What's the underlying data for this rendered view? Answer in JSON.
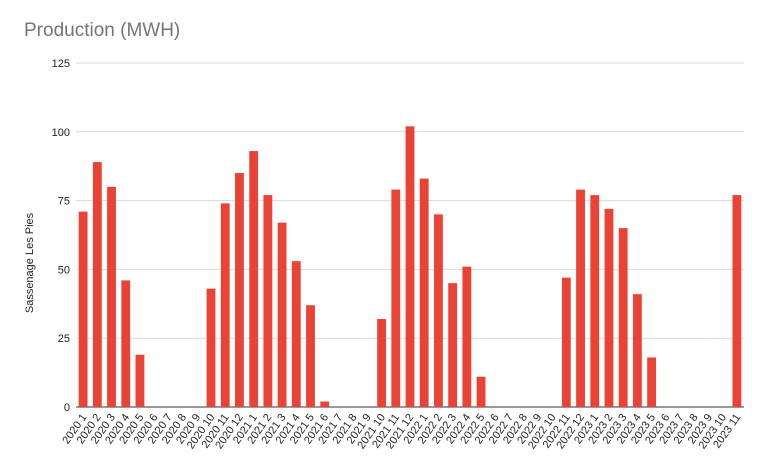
{
  "chart_data": {
    "type": "bar",
    "title": "Production (MWH)",
    "xlabel": "",
    "ylabel": "Sassenage Les Pies",
    "ylim": [
      0,
      125
    ],
    "yticks": [
      0,
      25,
      50,
      75,
      100,
      125
    ],
    "grid": true,
    "legend": "none",
    "bar_color": "#ea4335",
    "categories": [
      "2020 1",
      "2020 2",
      "2020 3",
      "2020 4",
      "2020 5",
      "2020 6",
      "2020 7",
      "2020 8",
      "2020 9",
      "2020 10",
      "2020 11",
      "2020 12",
      "2021 1",
      "2021 2",
      "2021 3",
      "2021 4",
      "2021 5",
      "2021 6",
      "2021 7",
      "2021 8",
      "2021 9",
      "2021 10",
      "2021 11",
      "2021 12",
      "2022 1",
      "2022 2",
      "2022 3",
      "2022 4",
      "2022 5",
      "2022 6",
      "2022 7",
      "2022 8",
      "2022 9",
      "2022 10",
      "2022 11",
      "2022 12",
      "2023 1",
      "2023 2",
      "2023 3",
      "2023 4",
      "2023 5",
      "2023 6",
      "2023 7",
      "2023 8",
      "2023 9",
      "2023 10",
      "2023 11"
    ],
    "values": [
      71,
      89,
      80,
      46,
      19,
      0,
      0,
      0,
      0,
      43,
      74,
      85,
      93,
      77,
      67,
      53,
      37,
      2,
      0,
      0,
      0,
      32,
      79,
      102,
      83,
      70,
      45,
      51,
      11,
      0,
      0,
      0,
      0,
      0,
      47,
      79,
      77,
      72,
      65,
      41,
      18,
      0,
      0,
      0,
      0,
      0,
      77
    ]
  }
}
